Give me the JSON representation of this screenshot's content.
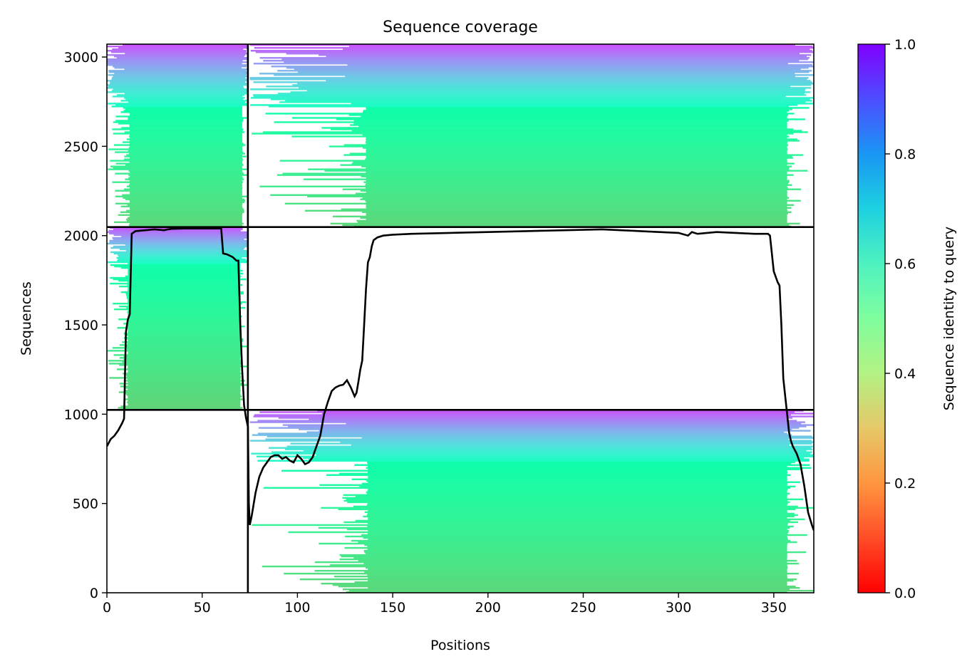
{
  "chart_data": {
    "type": "heatmap",
    "title": "Sequence coverage",
    "xlabel": "Positions",
    "ylabel": "Sequences",
    "xlim": [
      0,
      371
    ],
    "ylim": [
      0,
      3072
    ],
    "x_ticks": [
      0,
      50,
      100,
      150,
      200,
      250,
      300,
      350
    ],
    "y_ticks": [
      0,
      500,
      1000,
      1500,
      2000,
      2500,
      3000
    ],
    "colorbar": {
      "label": "Sequence identity to query",
      "range": [
        0,
        1
      ],
      "ticks": [
        0.0,
        0.2,
        0.4,
        0.6,
        0.8,
        1.0
      ],
      "tick_labels": [
        "0.0",
        "0.2",
        "0.4",
        "0.6",
        "0.8",
        "1.0"
      ],
      "colormap": "rainbow_r",
      "colors": [
        "#ff0000",
        "#ff7f3f",
        "#b3f283",
        "#2adddd",
        "#1996f3",
        "#8000ff"
      ]
    },
    "boundaries": {
      "vertical_x": [
        74
      ],
      "horizontal_y": [
        1024,
        2048
      ]
    },
    "blocks": [
      {
        "rows": [
          0,
          1024
        ],
        "cols": [
          74,
          371
        ],
        "identity_top": 0.9,
        "identity_bottom": 0.32,
        "identity_transition_row": 730,
        "dense_start_col": 137,
        "dense_end_col": 357,
        "ragged_start_range": [
          75,
          137
        ],
        "ragged_end_range": [
          355,
          371
        ]
      },
      {
        "rows": [
          1024,
          2048
        ],
        "cols": [
          0,
          74
        ],
        "identity_top": 0.9,
        "identity_bottom": 0.31,
        "identity_transition_row": 1840,
        "dense_start_col": 11,
        "dense_end_col": 70,
        "ragged_start_range": [
          0,
          11
        ],
        "ragged_end_range": [
          70,
          74
        ]
      },
      {
        "rows": [
          2048,
          3072
        ],
        "cols": [
          0,
          74
        ],
        "identity_top": 0.9,
        "identity_bottom": 0.32,
        "identity_transition_row": 2720,
        "dense_start_col": 12,
        "dense_end_col": 71,
        "ragged_start_range": [
          0,
          12
        ],
        "ragged_end_range": [
          70,
          74
        ]
      },
      {
        "rows": [
          2048,
          3072
        ],
        "cols": [
          74,
          371
        ],
        "identity_top": 0.9,
        "identity_bottom": 0.32,
        "identity_transition_row": 2720,
        "dense_start_col": 136,
        "dense_end_col": 357,
        "ragged_start_range": [
          75,
          136
        ],
        "ragged_end_range": [
          355,
          371
        ]
      }
    ],
    "coverage_line": {
      "name": "",
      "x": [
        0,
        2,
        4,
        6,
        8,
        9,
        10,
        11,
        12,
        13,
        15,
        20,
        25,
        30,
        32,
        34,
        40,
        50,
        60,
        61,
        63,
        66,
        68,
        69,
        70,
        71,
        72,
        73,
        74,
        74.5,
        75,
        76,
        78,
        80,
        82,
        84,
        86,
        88,
        90,
        92,
        94,
        96,
        98,
        100,
        102,
        104,
        106,
        108,
        110,
        112,
        114,
        116,
        118,
        120,
        122,
        124,
        126,
        128,
        130,
        131,
        132,
        133,
        134,
        135,
        136,
        137,
        138,
        139,
        140,
        142,
        145,
        150,
        160,
        180,
        200,
        220,
        240,
        260,
        270,
        280,
        290,
        300,
        305,
        307,
        310,
        320,
        330,
        340,
        347,
        348,
        350,
        352,
        353,
        354,
        355,
        356,
        357,
        358,
        359,
        360,
        362,
        364,
        366,
        368,
        370,
        371
      ],
      "y": [
        820,
        860,
        880,
        910,
        950,
        975,
        1460,
        1530,
        1560,
        2010,
        2025,
        2030,
        2035,
        2030,
        2035,
        2038,
        2040,
        2040,
        2040,
        1900,
        1895,
        1880,
        1860,
        1860,
        1500,
        1250,
        1050,
        980,
        930,
        500,
        380,
        430,
        560,
        650,
        700,
        730,
        760,
        770,
        770,
        750,
        760,
        740,
        730,
        770,
        750,
        720,
        730,
        760,
        820,
        880,
        1000,
        1070,
        1130,
        1150,
        1160,
        1165,
        1190,
        1150,
        1100,
        1120,
        1180,
        1250,
        1300,
        1500,
        1700,
        1850,
        1880,
        1940,
        1975,
        1990,
        2000,
        2005,
        2010,
        2015,
        2020,
        2025,
        2030,
        2035,
        2030,
        2025,
        2020,
        2015,
        2000,
        2020,
        2010,
        2020,
        2015,
        2010,
        2010,
        2000,
        1800,
        1740,
        1720,
        1500,
        1200,
        1100,
        1000,
        900,
        850,
        820,
        780,
        720,
        600,
        450,
        380,
        350
      ]
    }
  }
}
